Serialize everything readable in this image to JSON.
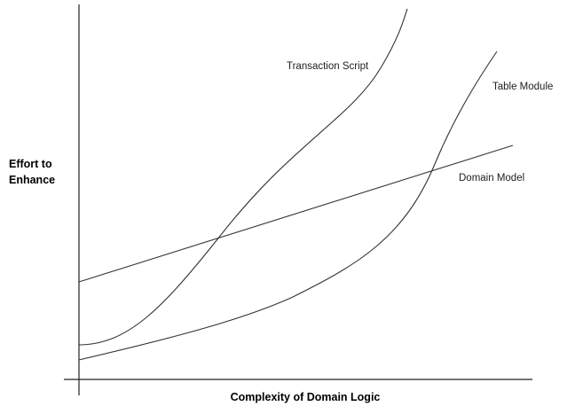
{
  "chart_data": {
    "type": "line",
    "title": "",
    "xlabel": "Complexity of Domain Logic",
    "ylabel": "Effort to Enhance",
    "axis_ticks": false,
    "grid": false,
    "legend": "inline labels next to curves",
    "series": [
      {
        "name": "Transaction Script",
        "shape": "exponential rise, steepest",
        "points": [
          [
            0.0,
            0.08
          ],
          [
            0.1,
            0.12
          ],
          [
            0.2,
            0.19
          ],
          [
            0.3,
            0.28
          ],
          [
            0.4,
            0.4
          ],
          [
            0.5,
            0.53
          ],
          [
            0.6,
            0.66
          ],
          [
            0.7,
            0.78
          ],
          [
            0.75,
            0.86
          ],
          [
            0.78,
            0.93
          ],
          [
            0.8,
            1.0
          ]
        ]
      },
      {
        "name": "Table Module",
        "shape": "gradual rise then sharp upturn",
        "points": [
          [
            0.0,
            0.04
          ],
          [
            0.2,
            0.08
          ],
          [
            0.4,
            0.13
          ],
          [
            0.5,
            0.17
          ],
          [
            0.6,
            0.24
          ],
          [
            0.7,
            0.35
          ],
          [
            0.8,
            0.5
          ],
          [
            0.86,
            0.63
          ],
          [
            0.92,
            0.79
          ],
          [
            0.96,
            0.9
          ],
          [
            1.0,
            1.0
          ]
        ]
      },
      {
        "name": "Domain Model",
        "shape": "linear, higher starting effort",
        "points": [
          [
            0.0,
            0.26
          ],
          [
            1.0,
            0.62
          ]
        ]
      }
    ]
  }
}
